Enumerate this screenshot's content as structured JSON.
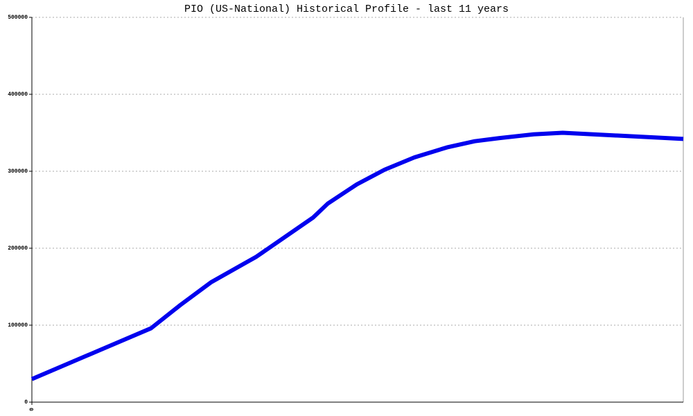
{
  "chart_data": {
    "type": "line",
    "title": "PIO (US-National) Historical Profile - last 11 years",
    "x": [
      0,
      172,
      214,
      259,
      324,
      406,
      427,
      469,
      509,
      552,
      599,
      639,
      674,
      724,
      766,
      940
    ],
    "series": [
      {
        "color": "#0000ee",
        "values": [
          30000,
          96000,
          126000,
          156000,
          189000,
          240000,
          258000,
          283000,
          302000,
          318000,
          331000,
          339000,
          343000,
          348000,
          350000,
          342000
        ]
      }
    ],
    "xlim": [
      0,
      940
    ],
    "xticks": [
      0
    ],
    "ylim": [
      0,
      500000
    ],
    "yticks": [
      0,
      100000,
      200000,
      300000,
      400000,
      500000
    ],
    "grid": true
  }
}
